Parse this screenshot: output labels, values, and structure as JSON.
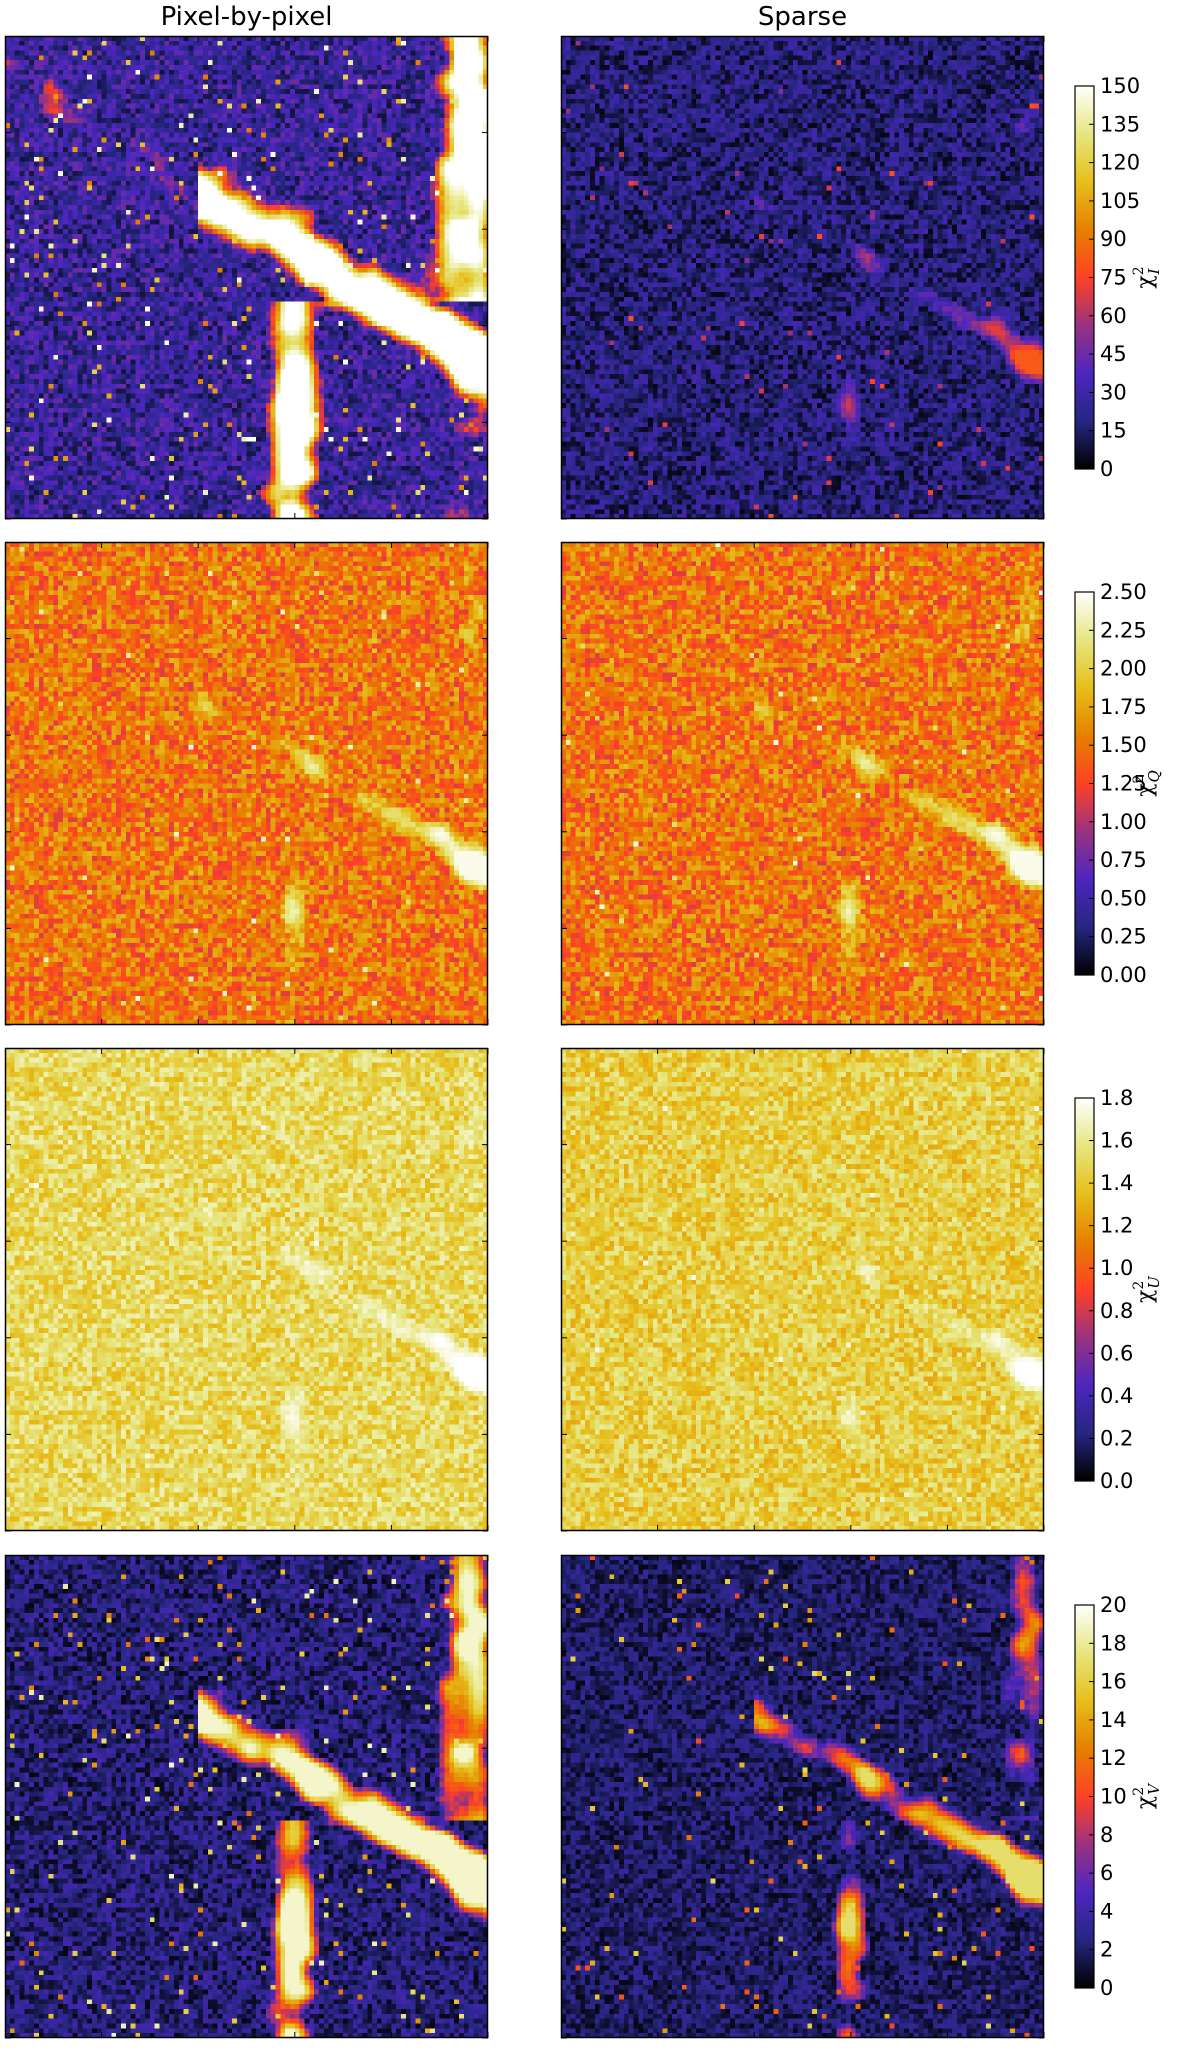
{
  "column_titles": [
    "Pixel-by-pixel",
    "Sparse"
  ],
  "chart_data": [
    {
      "type": "heatmap",
      "colormap": "CMRmap",
      "colorbar_label": "χ²_I",
      "colorbar_label_main": "χ",
      "colorbar_label_sub": "I",
      "colorbar_label_sup": "2",
      "colorbar_range": [
        0,
        150
      ],
      "colorbar_ticks": [
        "0",
        "15",
        "30",
        "45",
        "60",
        "75",
        "90",
        "105",
        "120",
        "135",
        "150"
      ],
      "panels": [
        {
          "name": "Pixel-by-pixel",
          "typical_level": 0.18,
          "hotspot_level": 1.0,
          "noise": 0.12,
          "hotspot_coverage": 0.1
        },
        {
          "name": "Sparse",
          "typical_level": 0.12,
          "hotspot_level": 0.55,
          "noise": 0.1,
          "hotspot_coverage": 0.02
        }
      ]
    },
    {
      "type": "heatmap",
      "colormap": "CMRmap",
      "colorbar_label": "χ²_Q",
      "colorbar_label_main": "χ",
      "colorbar_label_sub": "Q",
      "colorbar_label_sup": "2",
      "colorbar_range": [
        0.0,
        2.5
      ],
      "colorbar_ticks": [
        "0.00",
        "0.25",
        "0.50",
        "0.75",
        "1.00",
        "1.25",
        "1.50",
        "1.75",
        "2.00",
        "2.25",
        "2.50"
      ],
      "panels": [
        {
          "name": "Pixel-by-pixel",
          "typical_level": 0.6,
          "hotspot_level": 0.98,
          "noise": 0.14,
          "hotspot_coverage": 0.03
        },
        {
          "name": "Sparse",
          "typical_level": 0.6,
          "hotspot_level": 0.98,
          "noise": 0.14,
          "hotspot_coverage": 0.03
        }
      ]
    },
    {
      "type": "heatmap",
      "colormap": "CMRmap",
      "colorbar_label": "χ²_U",
      "colorbar_label_main": "χ",
      "colorbar_label_sub": "U",
      "colorbar_label_sup": "2",
      "colorbar_range": [
        0.0,
        1.8
      ],
      "colorbar_ticks": [
        "0.0",
        "0.2",
        "0.4",
        "0.6",
        "0.8",
        "1.0",
        "1.2",
        "1.4",
        "1.6",
        "1.8"
      ],
      "panels": [
        {
          "name": "Pixel-by-pixel",
          "typical_level": 0.83,
          "hotspot_level": 1.0,
          "noise": 0.1,
          "hotspot_coverage": 0.03
        },
        {
          "name": "Sparse",
          "typical_level": 0.8,
          "hotspot_level": 1.0,
          "noise": 0.1,
          "hotspot_coverage": 0.02
        }
      ]
    },
    {
      "type": "heatmap",
      "colormap": "CMRmap",
      "colorbar_label": "χ²_V",
      "colorbar_label_main": "χ",
      "colorbar_label_sub": "V",
      "colorbar_label_sup": "2",
      "colorbar_range": [
        0,
        20
      ],
      "colorbar_ticks": [
        "0",
        "2",
        "4",
        "6",
        "8",
        "10",
        "12",
        "14",
        "16",
        "18",
        "20"
      ],
      "panels": [
        {
          "name": "Pixel-by-pixel",
          "typical_level": 0.12,
          "hotspot_level": 0.95,
          "noise": 0.1,
          "hotspot_coverage": 0.08
        },
        {
          "name": "Sparse",
          "typical_level": 0.1,
          "hotspot_level": 0.85,
          "noise": 0.08,
          "hotspot_coverage": 0.05
        }
      ]
    }
  ]
}
